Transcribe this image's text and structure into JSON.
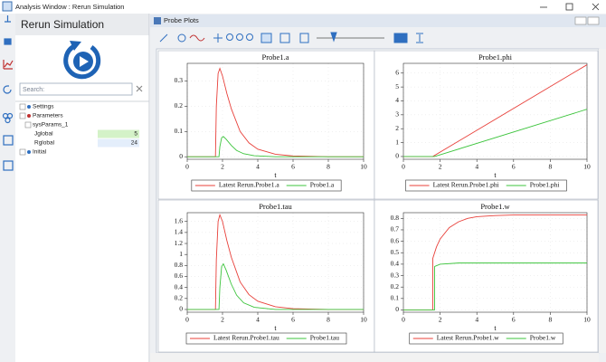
{
  "window": {
    "title": "Analysis Window : Rerun Simulation"
  },
  "sidebar": {
    "title": "Rerun Simulation",
    "search_placeholder": "Search:",
    "tree": [
      {
        "label": "Settings"
      },
      {
        "label": "Parameters"
      },
      {
        "label": "sysParams_1"
      },
      {
        "label": "Jglobal",
        "value": "5"
      },
      {
        "label": "Rglobal",
        "value": "24"
      },
      {
        "label": "Initial"
      }
    ]
  },
  "panel": {
    "title": "Probe Plots"
  },
  "chart_data": [
    {
      "type": "line",
      "title": "Probe1.a",
      "x_label": "t",
      "xlim": [
        0,
        10
      ],
      "xticks": [
        0,
        2,
        4,
        6,
        8,
        10
      ],
      "ylim": [
        -0.01,
        0.37
      ],
      "yticks": [
        0,
        0.1,
        0.2,
        0.3
      ],
      "grid": true,
      "series": [
        {
          "name": "Latest Rerun.Probe1.a",
          "color": "#e8403a",
          "x": [
            0,
            1.6,
            1.65,
            1.75,
            1.85,
            2,
            2.25,
            2.5,
            3,
            3.5,
            4,
            5,
            6,
            8,
            10
          ],
          "values": [
            0,
            0,
            0.2,
            0.33,
            0.35,
            0.32,
            0.25,
            0.19,
            0.1,
            0.055,
            0.03,
            0.01,
            0.003,
            0,
            0
          ]
        },
        {
          "name": "Probe1.a",
          "color": "#3cc43c",
          "x": [
            0,
            1.8,
            1.85,
            1.95,
            2.05,
            2.2,
            2.5,
            2.8,
            3.2,
            3.8,
            5,
            10
          ],
          "values": [
            0,
            0,
            0.04,
            0.075,
            0.08,
            0.07,
            0.045,
            0.025,
            0.012,
            0.004,
            0,
            0
          ]
        }
      ]
    },
    {
      "type": "line",
      "title": "Probe1.phi",
      "x_label": "t",
      "xlim": [
        0,
        10
      ],
      "xticks": [
        0,
        2,
        4,
        6,
        8,
        10
      ],
      "ylim": [
        -0.2,
        6.7
      ],
      "yticks": [
        0,
        1,
        2,
        3,
        4,
        5,
        6
      ],
      "grid": true,
      "series": [
        {
          "name": "Latest Rerun.Probe1.phi",
          "color": "#e8403a",
          "x": [
            0,
            1.6,
            10
          ],
          "values": [
            0,
            0,
            6.6
          ]
        },
        {
          "name": "Probe1.phi",
          "color": "#3cc43c",
          "x": [
            0,
            1.7,
            10
          ],
          "values": [
            0,
            0,
            3.4
          ]
        }
      ]
    },
    {
      "type": "line",
      "title": "Probe1.tau",
      "x_label": "t",
      "xlim": [
        0,
        10
      ],
      "xticks": [
        0,
        2,
        4,
        6,
        8,
        10
      ],
      "ylim": [
        -0.05,
        1.76
      ],
      "yticks": [
        0,
        0.2,
        0.4,
        0.6,
        0.8,
        1,
        1.2,
        1.4,
        1.6
      ],
      "grid": true,
      "series": [
        {
          "name": "Latest Rerun.Probe1.tau",
          "color": "#e8403a",
          "x": [
            0,
            1.6,
            1.65,
            1.75,
            1.85,
            2,
            2.25,
            2.5,
            3,
            3.5,
            4,
            5,
            6,
            8,
            10
          ],
          "values": [
            0,
            0,
            0.9,
            1.6,
            1.72,
            1.6,
            1.25,
            0.95,
            0.5,
            0.27,
            0.15,
            0.05,
            0.015,
            0,
            0
          ]
        },
        {
          "name": "Probe1.tau",
          "color": "#3cc43c",
          "x": [
            0,
            1.8,
            1.85,
            1.95,
            2.05,
            2.2,
            2.5,
            2.8,
            3.2,
            3.8,
            5,
            10
          ],
          "values": [
            0,
            0,
            0.4,
            0.78,
            0.83,
            0.72,
            0.46,
            0.26,
            0.12,
            0.04,
            0,
            0
          ]
        }
      ]
    },
    {
      "type": "line",
      "title": "Probe1.w",
      "x_label": "t",
      "xlim": [
        0,
        10
      ],
      "xticks": [
        0,
        2,
        4,
        6,
        8,
        10
      ],
      "ylim": [
        -0.02,
        0.85
      ],
      "yticks": [
        0,
        0.1,
        0.2,
        0.3,
        0.4,
        0.5,
        0.6,
        0.7,
        0.8
      ],
      "grid": true,
      "series": [
        {
          "name": "Latest Rerun.Probe1.w",
          "color": "#e8403a",
          "x": [
            0,
            1.6,
            1.6,
            1.8,
            2,
            2.5,
            3,
            3.5,
            4,
            5,
            6,
            8,
            10
          ],
          "values": [
            0,
            0,
            0.45,
            0.55,
            0.62,
            0.72,
            0.77,
            0.8,
            0.815,
            0.825,
            0.83,
            0.83,
            0.83
          ]
        },
        {
          "name": "Probe1.w",
          "color": "#3cc43c",
          "x": [
            0,
            1.7,
            1.7,
            2,
            3,
            10
          ],
          "values": [
            0,
            0,
            0.38,
            0.4,
            0.41,
            0.41
          ]
        }
      ]
    }
  ]
}
